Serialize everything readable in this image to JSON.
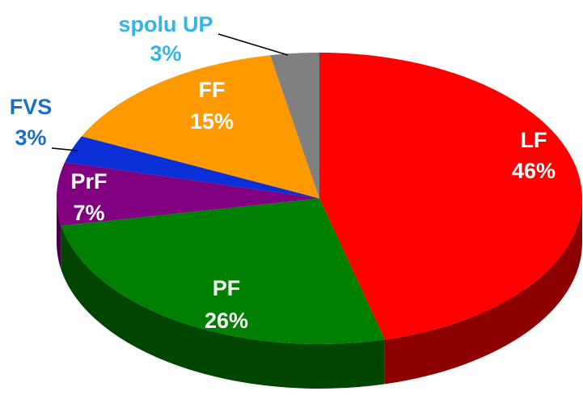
{
  "chart_data": {
    "type": "pie3d",
    "categories": [
      "LF",
      "PF",
      "PrF",
      "FVS",
      "FF",
      "spolu UP"
    ],
    "values": [
      46,
      26,
      7,
      3,
      15,
      3
    ],
    "value_labels": [
      "46%",
      "26%",
      "7%",
      "3%",
      "15%",
      "3%"
    ],
    "colors": [
      "#ff0000",
      "#008000",
      "#800080",
      "#0a2fd6",
      "#ff9900",
      "#808080"
    ]
  }
}
